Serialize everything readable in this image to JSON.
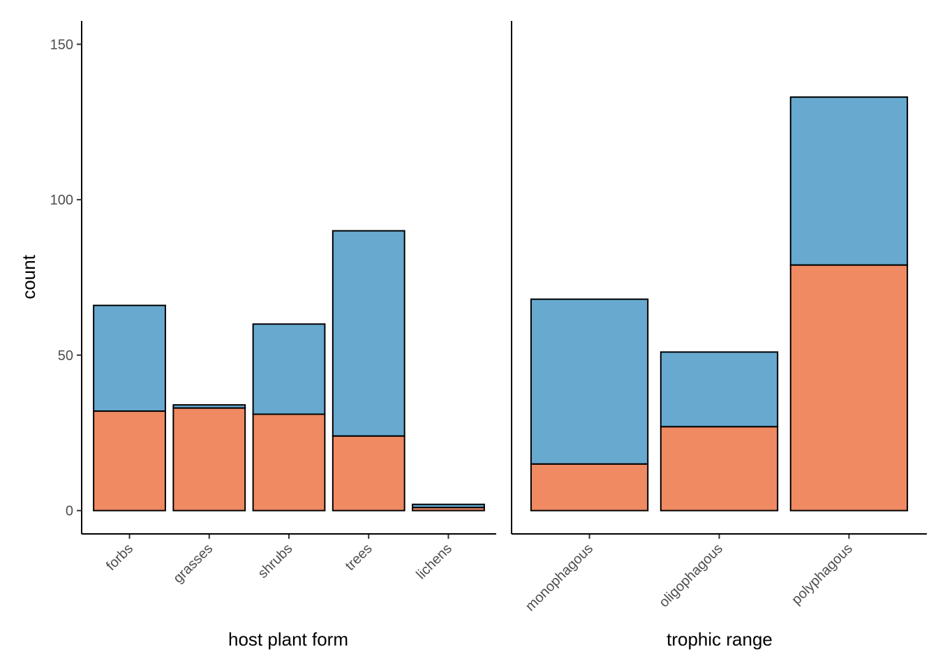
{
  "chart_data": [
    {
      "type": "bar",
      "stacked": true,
      "xlabel": "host plant form",
      "ylabel": "count",
      "ylim": [
        -7.5,
        157.5
      ],
      "yticks": [
        0,
        50,
        100,
        150
      ],
      "categories": [
        "forbs",
        "grasses",
        "shrubs",
        "trees",
        "lichens"
      ],
      "series": [
        {
          "color": "#EF8A62",
          "values": [
            32,
            33,
            31,
            24,
            1
          ]
        },
        {
          "color": "#67A9CF",
          "values": [
            34,
            1,
            29,
            66,
            1
          ]
        }
      ]
    },
    {
      "type": "bar",
      "stacked": true,
      "xlabel": "trophic range",
      "ylabel": "",
      "ylim": [
        -7.5,
        157.5
      ],
      "yticks": [],
      "categories": [
        "monophagous",
        "oligophagous",
        "polyphagous"
      ],
      "series": [
        {
          "color": "#EF8A62",
          "values": [
            15,
            27,
            79
          ]
        },
        {
          "color": "#67A9CF",
          "values": [
            53,
            24,
            54
          ]
        }
      ]
    }
  ]
}
